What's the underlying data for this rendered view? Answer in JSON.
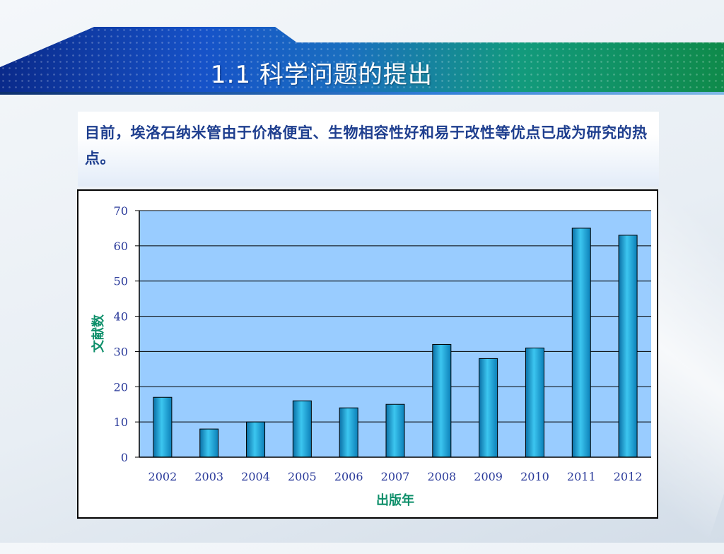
{
  "slide": {
    "title": "1.1  科学问题的提出",
    "intro": "目前，埃洛石纳米管由于价格便宜、生物相容性好和易于改性等优点已成为研究的热点。"
  },
  "colors": {
    "plot_area": "#99ccff",
    "bar": "#1aa7d9",
    "axis_label": "#0e8f6a",
    "tick_label": "#2a3a9a",
    "intro_text": "#1f3f8f"
  },
  "chart_data": {
    "type": "bar",
    "title": "",
    "xlabel": "出版年",
    "ylabel": "文献数",
    "categories": [
      "2002",
      "2003",
      "2004",
      "2005",
      "2006",
      "2007",
      "2008",
      "2009",
      "2010",
      "2011",
      "2012"
    ],
    "values": [
      17,
      8,
      10,
      16,
      14,
      15,
      32,
      28,
      31,
      65,
      63
    ],
    "ylim": [
      0,
      70
    ],
    "yticks": [
      0,
      10,
      20,
      30,
      40,
      50,
      60,
      70
    ],
    "grid": true,
    "legend": "none"
  }
}
